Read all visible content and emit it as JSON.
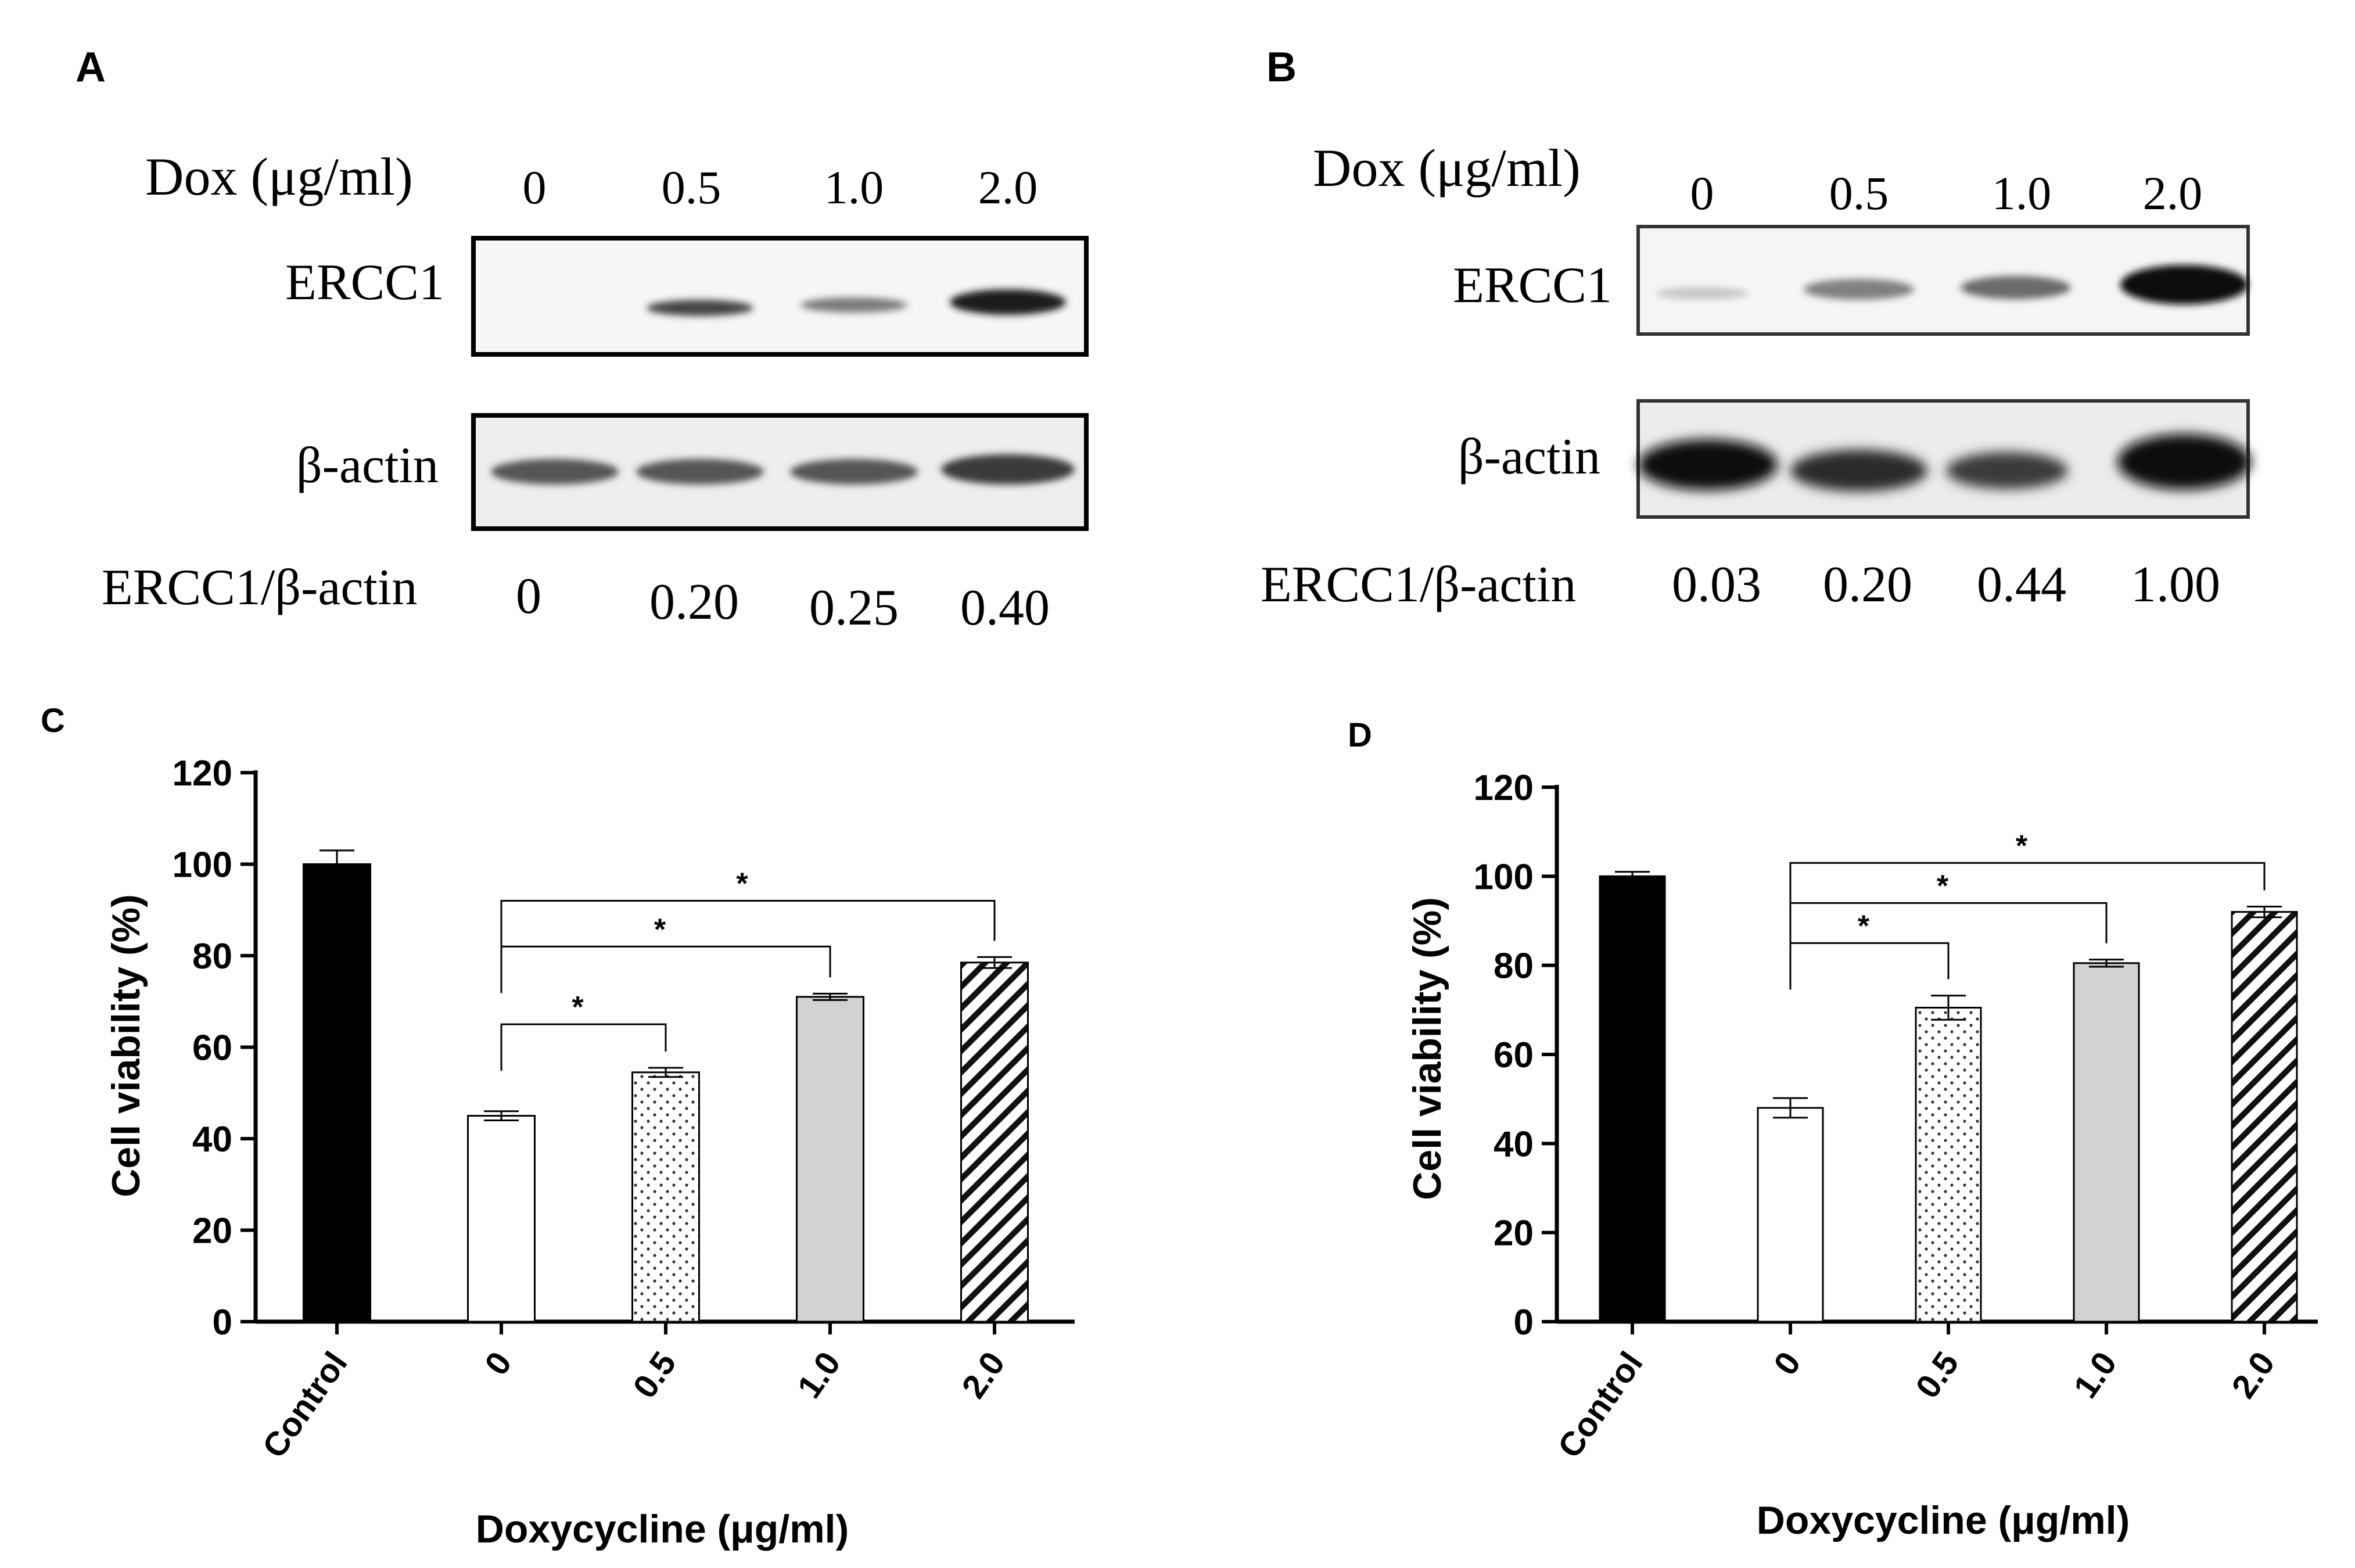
{
  "panels": {
    "A": {
      "label": "A"
    },
    "B": {
      "label": "B"
    },
    "C": {
      "label": "C"
    },
    "D": {
      "label": "D"
    }
  },
  "blot_A": {
    "dox_label": "Dox (μg/ml)",
    "doses": [
      "0",
      "0.5",
      "1.0",
      "2.0"
    ],
    "row1_label": "ERCC1",
    "row2_label": "β-actin",
    "ratio_label": "ERCC1/β-actin",
    "ratios": [
      "0",
      "0.20",
      "0.25",
      "0.40"
    ]
  },
  "blot_B": {
    "dox_label": "Dox (μg/ml)",
    "doses": [
      "0",
      "0.5",
      "1.0",
      "2.0"
    ],
    "row1_label": "ERCC1",
    "row2_label": "β-actin",
    "ratio_label": "ERCC1/β-actin",
    "ratios": [
      "0.03",
      "0.20",
      "0.44",
      "1.00"
    ]
  },
  "chart_data": [
    {
      "type": "bar",
      "panel": "C",
      "categories": [
        "Control",
        "0",
        "0.5",
        "1.0",
        "2.0"
      ],
      "values": [
        100,
        45,
        54.5,
        71,
        78.5
      ],
      "errors": [
        3,
        1,
        1,
        0.7,
        1.2
      ],
      "fills": [
        "solid-black",
        "white",
        "dotted",
        "light-gray",
        "hatched"
      ],
      "xlabel": "Doxycycline (μg/ml)",
      "ylabel": "Cell viability (%)",
      "ylim": [
        0,
        120
      ],
      "yticks": [
        0,
        20,
        40,
        60,
        80,
        100,
        120
      ],
      "significance": [
        {
          "from": "0",
          "to": "0.5",
          "label": "*",
          "y": 65
        },
        {
          "from": "0",
          "to": "1.0",
          "label": "*",
          "y": 82
        },
        {
          "from": "0",
          "to": "2.0",
          "label": "*",
          "y": 92
        }
      ]
    },
    {
      "type": "bar",
      "panel": "D",
      "categories": [
        "Control",
        "0",
        "0.5",
        "1.0",
        "2.0"
      ],
      "values": [
        100,
        48,
        70.5,
        80.5,
        92
      ],
      "errors": [
        1,
        2.2,
        2.7,
        0.8,
        1.2
      ],
      "fills": [
        "solid-black",
        "white",
        "dotted",
        "light-gray",
        "hatched"
      ],
      "xlabel": "Doxycycline (μg/ml)",
      "ylabel": "Cell viability (%)",
      "ylim": [
        0,
        120
      ],
      "yticks": [
        0,
        20,
        40,
        60,
        80,
        100,
        120
      ],
      "significance": [
        {
          "from": "0",
          "to": "0.5",
          "label": "*",
          "y": 85
        },
        {
          "from": "0",
          "to": "1.0",
          "label": "*",
          "y": 94
        },
        {
          "from": "0",
          "to": "2.0",
          "label": "*",
          "y": 103
        }
      ]
    }
  ]
}
